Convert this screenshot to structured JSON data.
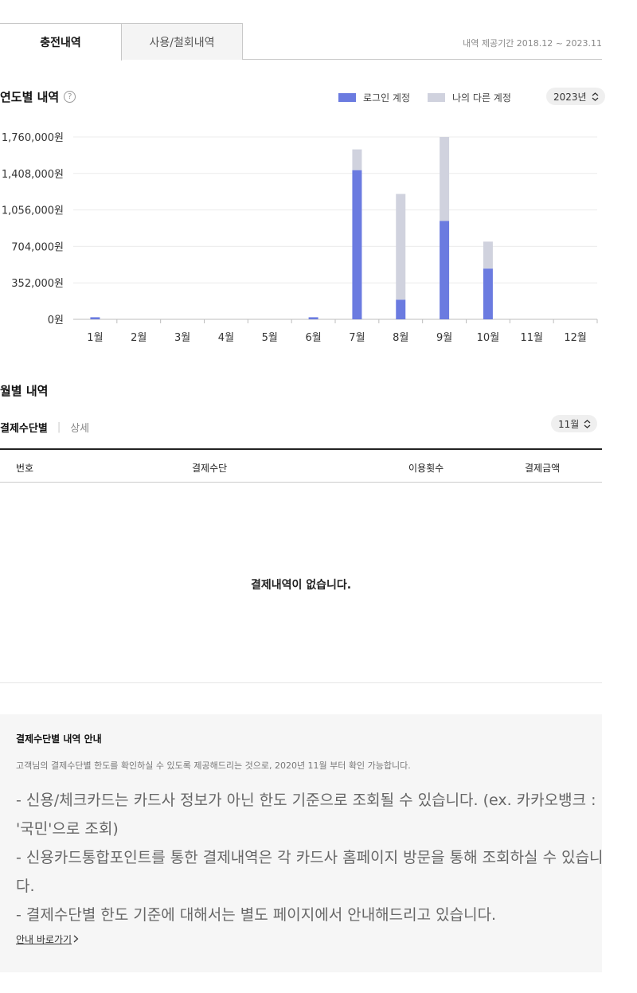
{
  "tabs": {
    "active": "충전내역",
    "inactive": "사용/철회내역"
  },
  "period": "내역 제공기간 2018.12 ~ 2023.11",
  "annual": {
    "title": "연도별 내역",
    "help_icon": "question-circle-icon",
    "legend": [
      {
        "label": "로그인 계정",
        "color": "#6b7be0"
      },
      {
        "label": "나의 다른 계정",
        "color": "#d0d2de"
      }
    ],
    "year_select": "2023년"
  },
  "chart_data": {
    "type": "bar",
    "stacked": true,
    "categories": [
      "1월",
      "2월",
      "3월",
      "4월",
      "5월",
      "6월",
      "7월",
      "8월",
      "9월",
      "10월",
      "11월",
      "12월"
    ],
    "series": [
      {
        "name": "로그인 계정",
        "color": "#6b7be0",
        "values": [
          20000,
          0,
          0,
          0,
          0,
          20000,
          1440000,
          190000,
          950000,
          490000,
          0,
          0
        ]
      },
      {
        "name": "나의 다른 계정",
        "color": "#d0d2de",
        "values": [
          0,
          0,
          0,
          0,
          0,
          0,
          200000,
          1020000,
          810000,
          260000,
          0,
          0
        ]
      }
    ],
    "y_ticks": [
      "0원",
      "352,000원",
      "704,000원",
      "1,056,000원",
      "1,408,000원",
      "1,760,000원"
    ],
    "ylim": [
      0,
      1760000
    ],
    "grid": true
  },
  "monthly": {
    "title": "월별 내역",
    "subtab_active": "결제수단별",
    "subtab_other": "상세",
    "month_select": "11월",
    "columns": [
      "번호",
      "결제수단",
      "이용횟수",
      "결제금액"
    ],
    "empty_message": "결제내역이 없습니다."
  },
  "info": {
    "title": "결제수단별 내역 안내",
    "desc": "고객님의 결제수단별 한도를 확인하실 수 있도록 제공해드리는 것으로, 2020년 11월 부터 확인 가능합니다.",
    "bullets": [
      "- 신용/체크카드는 카드사 정보가 아닌 한도 기준으로 조회될 수 있습니다. (ex. 카카오뱅크 : '국민'으로 조회)",
      "- 신용카드통합포인트를 통한 결제내역은 각 카드사 홈페이지 방문을 통해 조회하실 수 있습니다.",
      "- 결제수단별 한도 기준에 대해서는 별도 페이지에서 안내해드리고 있습니다."
    ],
    "link": "안내 바로가기",
    "link_icon": "chevron-right-icon"
  }
}
